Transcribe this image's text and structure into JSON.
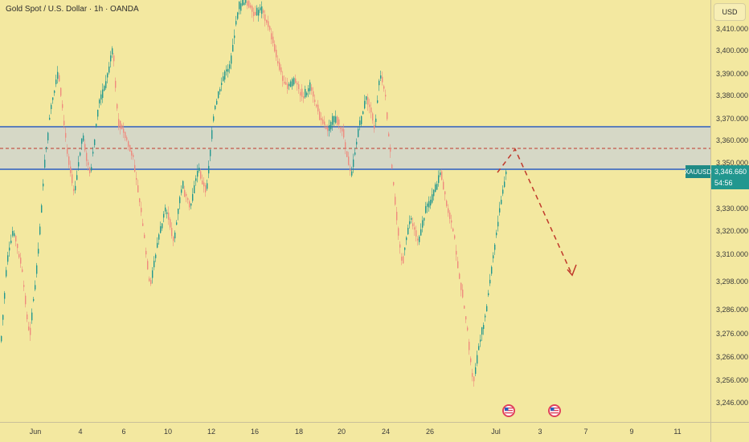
{
  "header": {
    "title": "Gold Spot / U.S. Dollar · 1h · OANDA",
    "currency": "USD"
  },
  "price_axis": {
    "labels": [
      "3,410.000",
      "3,400.000",
      "3,390.000",
      "3,380.000",
      "3,370.000",
      "3,360.000",
      "3,350.000",
      "3,330.000",
      "3,320.000",
      "3,310.000",
      "3,298.000",
      "3,286.000",
      "3,276.000",
      "3,266.000",
      "3,256.000",
      "3,246.000"
    ]
  },
  "time_axis": {
    "labels": [
      "Jun",
      "4",
      "6",
      "10",
      "12",
      "16",
      "18",
      "20",
      "24",
      "26",
      "Jul",
      "3",
      "7",
      "9",
      "11"
    ]
  },
  "symbol_tag": {
    "symbol": "XAUUSD",
    "price": "3,346.660",
    "countdown": "54:56"
  },
  "colors": {
    "background": "#f3e8a0",
    "zone_fill": "#d6d8c6",
    "zone_line": "#2f5fbd",
    "bull": "#22978f",
    "bear": "#ef8a7e",
    "projection": "#c0392b"
  },
  "events": [
    {
      "icon": "us-flag-event-icon"
    },
    {
      "icon": "us-flag-event-icon"
    }
  ]
}
